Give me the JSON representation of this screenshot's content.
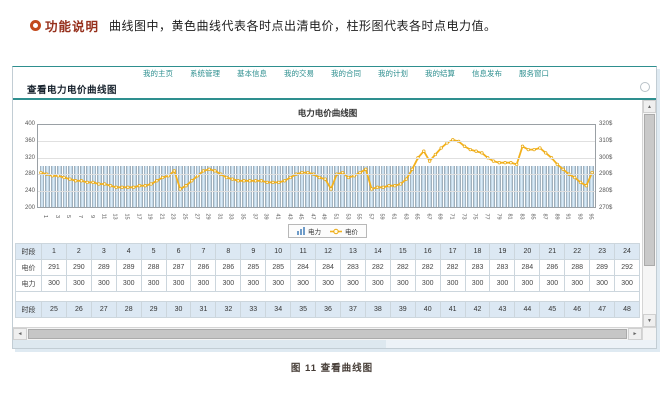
{
  "doc": {
    "func_label": "功能说明",
    "func_desc": "曲线图中，黄色曲线代表各时点出清电价，柱形图代表各时点电力值。",
    "caption": "图 11  查看曲线图"
  },
  "window": {
    "title": "查看电力电价曲线图",
    "nav_items": [
      "我的主页",
      "系统管理",
      "基本信息",
      "我的交易",
      "我的合同",
      "我的计划",
      "我的结算",
      "信息发布",
      "服务窗口"
    ]
  },
  "chart_data": {
    "type": "bar+line",
    "title": "电力电价曲线图",
    "x": [
      1,
      2,
      3,
      4,
      5,
      6,
      7,
      8,
      9,
      10,
      11,
      12,
      13,
      14,
      15,
      16,
      17,
      18,
      19,
      20,
      21,
      22,
      23,
      24,
      25,
      26,
      27,
      28,
      29,
      30,
      31,
      32,
      33,
      34,
      35,
      36,
      37,
      38,
      39,
      40,
      41,
      42,
      43,
      44,
      45,
      46,
      47,
      48,
      49,
      50,
      51,
      52,
      53,
      54,
      55,
      56,
      57,
      58,
      59,
      60,
      61,
      62,
      63,
      64,
      65,
      66,
      67,
      68,
      69,
      70,
      71,
      72,
      73,
      74,
      75,
      76,
      77,
      78,
      79,
      80,
      81,
      82,
      83,
      84,
      85,
      86,
      87,
      88,
      89,
      90,
      91,
      92,
      93,
      94,
      95,
      96
    ],
    "x_tick_labels": [
      "1",
      "3",
      "5",
      "7",
      "9",
      "11",
      "13",
      "15",
      "17",
      "19",
      "21",
      "23",
      "25",
      "27",
      "29",
      "31",
      "33",
      "35",
      "37",
      "39",
      "41",
      "43",
      "45",
      "47",
      "49",
      "51",
      "53",
      "55",
      "57",
      "59",
      "61",
      "63",
      "65",
      "67",
      "69",
      "71",
      "73",
      "75",
      "77",
      "79",
      "81",
      "83",
      "85",
      "87",
      "89",
      "91",
      "93",
      "95"
    ],
    "series": [
      {
        "name": "电力",
        "type": "bar",
        "axis": "left",
        "values": [
          300,
          300,
          300,
          300,
          300,
          300,
          300,
          300,
          300,
          300,
          300,
          300,
          300,
          300,
          300,
          300,
          300,
          300,
          300,
          300,
          300,
          300,
          300,
          300,
          300,
          300,
          300,
          300,
          300,
          300,
          300,
          300,
          300,
          300,
          300,
          300,
          300,
          300,
          300,
          300,
          300,
          300,
          300,
          300,
          300,
          300,
          300,
          300,
          300,
          300,
          300,
          300,
          300,
          300,
          300,
          300,
          300,
          300,
          300,
          300,
          300,
          300,
          300,
          300,
          300,
          300,
          300,
          300,
          300,
          300,
          300,
          300,
          300,
          300,
          300,
          300,
          300,
          300,
          300,
          300,
          300,
          300,
          300,
          300,
          300,
          300,
          300,
          300,
          300,
          300,
          300,
          300,
          300,
          300,
          300,
          300
        ]
      },
      {
        "name": "电价",
        "type": "line",
        "axis": "right",
        "values": [
          291,
          290,
          289,
          289,
          288,
          287,
          286,
          286,
          285,
          285,
          284,
          284,
          283,
          282,
          282,
          282,
          282,
          283,
          283,
          284,
          286,
          288,
          289,
          292,
          281,
          283,
          286,
          289,
          292,
          293,
          292,
          290,
          288,
          287,
          286,
          286,
          286,
          286,
          286,
          285,
          285,
          285,
          286,
          288,
          290,
          291,
          291,
          290,
          288,
          287,
          281,
          290,
          291,
          288,
          289,
          291,
          293,
          281,
          282,
          282,
          283,
          283,
          284,
          287,
          293,
          300,
          304,
          298,
          302,
          306,
          309,
          311,
          310,
          307,
          305,
          304,
          303,
          300,
          298,
          297,
          297,
          297,
          296,
          307,
          305,
          305,
          306,
          303,
          300,
          296,
          293,
          290,
          288,
          285,
          283,
          291
        ]
      }
    ],
    "left_axis": {
      "ticks": [
        "400",
        "360",
        "320",
        "280",
        "240",
        "200"
      ],
      "range": [
        200,
        400
      ]
    },
    "right_axis": {
      "ticks": [
        "320$",
        "310$",
        "300$",
        "290$",
        "280$",
        "270$"
      ],
      "range": [
        270,
        320
      ]
    },
    "legend": [
      "电力",
      "电价"
    ],
    "grid": true,
    "legend_position": "bottom-center"
  },
  "table": {
    "row_labels": {
      "period": "时段",
      "price": "电价",
      "power": "电力"
    },
    "section1": {
      "periods": [
        1,
        2,
        3,
        4,
        5,
        6,
        7,
        8,
        9,
        10,
        11,
        12,
        13,
        14,
        15,
        16,
        17,
        18,
        19,
        20,
        21,
        22,
        23,
        24
      ],
      "prices": [
        291,
        290,
        289,
        289,
        288,
        287,
        286,
        286,
        285,
        285,
        284,
        284,
        283,
        282,
        282,
        282,
        282,
        283,
        283,
        284,
        286,
        288,
        289,
        292
      ],
      "powers": [
        300,
        300,
        300,
        300,
        300,
        300,
        300,
        300,
        300,
        300,
        300,
        300,
        300,
        300,
        300,
        300,
        300,
        300,
        300,
        300,
        300,
        300,
        300,
        300
      ]
    },
    "section2": {
      "periods": [
        25,
        26,
        27,
        28,
        29,
        30,
        31,
        32,
        33,
        34,
        35,
        36,
        37,
        38,
        39,
        40,
        41,
        42,
        43,
        44,
        45,
        46,
        47,
        48
      ]
    }
  },
  "icons": {
    "up_arrow": "▲",
    "down_arrow": "▼",
    "left_arrow": "◄",
    "right_arrow": "►"
  },
  "colors": {
    "accent_teal": "#2e8f8f",
    "func_label_red": "#96301c",
    "bullet_orange": "#c2491d",
    "bar_fill_light": "#e2f1fc",
    "bar_fill_edge": "#8d9aa4",
    "price_line_yellow": "#f3b11d",
    "table_header_bg": "#dce8f3"
  }
}
